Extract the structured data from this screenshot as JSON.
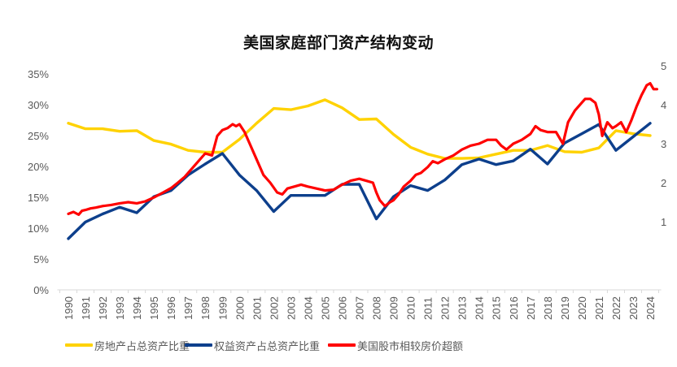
{
  "chart_data": {
    "type": "line",
    "title": "美国家庭部门资产结构变动",
    "x_ticks": [
      "1990",
      "1991",
      "1992",
      "1993",
      "1994",
      "1995",
      "1996",
      "1997",
      "1998",
      "1999",
      "2000",
      "2001",
      "2002",
      "2003",
      "2004",
      "2005",
      "2006",
      "2007",
      "2008",
      "2009",
      "2010",
      "2011",
      "2012",
      "2013",
      "2014",
      "2015",
      "2016",
      "2017",
      "2018",
      "2019",
      "2020",
      "2021",
      "2022",
      "2023",
      "2024"
    ],
    "y_left": {
      "ticks": [
        "0%",
        "5%",
        "10%",
        "15%",
        "20%",
        "25%",
        "30%",
        "35%"
      ],
      "range": [
        0,
        35
      ],
      "unit": "%"
    },
    "y_right": {
      "ticks": [
        "1",
        "2",
        "3",
        "4",
        "5"
      ],
      "range": [
        0,
        5.6
      ]
    },
    "grid": false,
    "legend_position": "bottom",
    "series": [
      {
        "name": "房地产占总资产比重",
        "axis": "left",
        "color": "#FFD200",
        "x": [
          1990,
          1991,
          1992,
          1993,
          1994,
          1995,
          1996,
          1997,
          1998,
          1999,
          2000,
          2001,
          2002,
          2003,
          2004,
          2005,
          2006,
          2007,
          2008,
          2009,
          2010,
          2011,
          2012,
          2013,
          2014,
          2015,
          2016,
          2017,
          2018,
          2019,
          2020,
          2021,
          2022,
          2023,
          2024
        ],
        "values": [
          27.0,
          26.1,
          26.1,
          25.7,
          25.8,
          24.2,
          23.6,
          22.6,
          22.3,
          22.3,
          24.4,
          27.0,
          29.4,
          29.2,
          29.8,
          30.8,
          29.5,
          27.6,
          27.7,
          25.2,
          23.1,
          22.0,
          21.3,
          21.3,
          21.4,
          22.0,
          22.6,
          22.6,
          23.4,
          22.4,
          22.3,
          23.0,
          25.8,
          25.3,
          25.0
        ]
      },
      {
        "name": "权益资产占总资产比重",
        "axis": "left",
        "color": "#0D3F8C",
        "x": [
          1990,
          1991,
          1992,
          1993,
          1994,
          1995,
          1996,
          1997,
          1998,
          1999,
          2000,
          2001,
          2002,
          2003,
          2004,
          2005,
          2006,
          2007,
          2008,
          2009,
          2010,
          2011,
          2012,
          2013,
          2014,
          2015,
          2016,
          2017,
          2018,
          2019,
          2020,
          2021,
          2022,
          2023,
          2024
        ],
        "values": [
          8.3,
          11.0,
          12.3,
          13.4,
          12.5,
          15.1,
          16.1,
          18.6,
          20.4,
          22.1,
          18.6,
          16.1,
          12.7,
          15.3,
          15.3,
          15.3,
          17.1,
          17.1,
          11.5,
          15.1,
          16.9,
          16.1,
          17.8,
          20.3,
          21.2,
          20.3,
          20.9,
          22.8,
          20.4,
          23.8,
          25.3,
          26.8,
          22.6,
          24.8,
          27.0
        ]
      },
      {
        "name": "美国股市相较房价超额",
        "axis": "right",
        "color": "#FF0000",
        "x": [
          1990.0,
          1990.3,
          1990.6,
          1990.8,
          1991.0,
          1991.3,
          1991.6,
          1992.0,
          1992.5,
          1993.0,
          1993.5,
          1994.0,
          1994.5,
          1995.0,
          1995.5,
          1996.0,
          1996.4,
          1996.8,
          1997.2,
          1997.6,
          1998.0,
          1998.4,
          1998.7,
          1999.0,
          1999.3,
          1999.6,
          1999.8,
          2000.0,
          2000.3,
          2000.6,
          2001.0,
          2001.4,
          2001.8,
          2002.2,
          2002.5,
          2002.8,
          2003.2,
          2003.6,
          2004.0,
          2004.5,
          2005.0,
          2005.5,
          2006.0,
          2006.5,
          2007.0,
          2007.4,
          2007.8,
          2008.0,
          2008.2,
          2008.5,
          2008.8,
          2009.0,
          2009.3,
          2009.6,
          2010.0,
          2010.3,
          2010.6,
          2011.0,
          2011.3,
          2011.6,
          2012.0,
          2012.5,
          2013.0,
          2013.5,
          2014.0,
          2014.5,
          2015.0,
          2015.3,
          2015.6,
          2016.0,
          2016.5,
          2017.0,
          2017.3,
          2017.6,
          2018.0,
          2018.5,
          2018.9,
          2019.2,
          2019.6,
          2020.0,
          2020.2,
          2020.5,
          2020.8,
          2021.0,
          2021.2,
          2021.5,
          2021.8,
          2022.0,
          2022.3,
          2022.6,
          2022.9,
          2023.2,
          2023.5,
          2023.8,
          2024.0,
          2024.2,
          2024.4
        ],
        "values": [
          1.2,
          1.25,
          1.18,
          1.28,
          1.3,
          1.34,
          1.36,
          1.4,
          1.43,
          1.47,
          1.5,
          1.47,
          1.52,
          1.62,
          1.74,
          1.86,
          2.0,
          2.15,
          2.35,
          2.55,
          2.75,
          2.7,
          3.2,
          3.35,
          3.4,
          3.5,
          3.45,
          3.5,
          3.3,
          3.0,
          2.6,
          2.2,
          2.0,
          1.75,
          1.7,
          1.85,
          1.9,
          1.95,
          1.9,
          1.85,
          1.8,
          1.82,
          1.95,
          2.05,
          2.1,
          2.05,
          2.0,
          1.75,
          1.55,
          1.4,
          1.5,
          1.55,
          1.7,
          1.9,
          2.05,
          2.2,
          2.25,
          2.4,
          2.55,
          2.5,
          2.6,
          2.7,
          2.85,
          2.95,
          3.0,
          3.1,
          3.1,
          2.95,
          2.85,
          3.0,
          3.1,
          3.25,
          3.45,
          3.35,
          3.3,
          3.3,
          3.0,
          3.55,
          3.85,
          4.05,
          4.15,
          4.15,
          4.05,
          3.75,
          3.2,
          3.55,
          3.4,
          3.45,
          3.55,
          3.3,
          3.6,
          3.95,
          4.25,
          4.5,
          4.55,
          4.4,
          4.4
        ]
      }
    ],
    "legend": [
      "房地产占总资产比重",
      "权益资产占总资产比重",
      "美国股市相较房价超额"
    ]
  }
}
